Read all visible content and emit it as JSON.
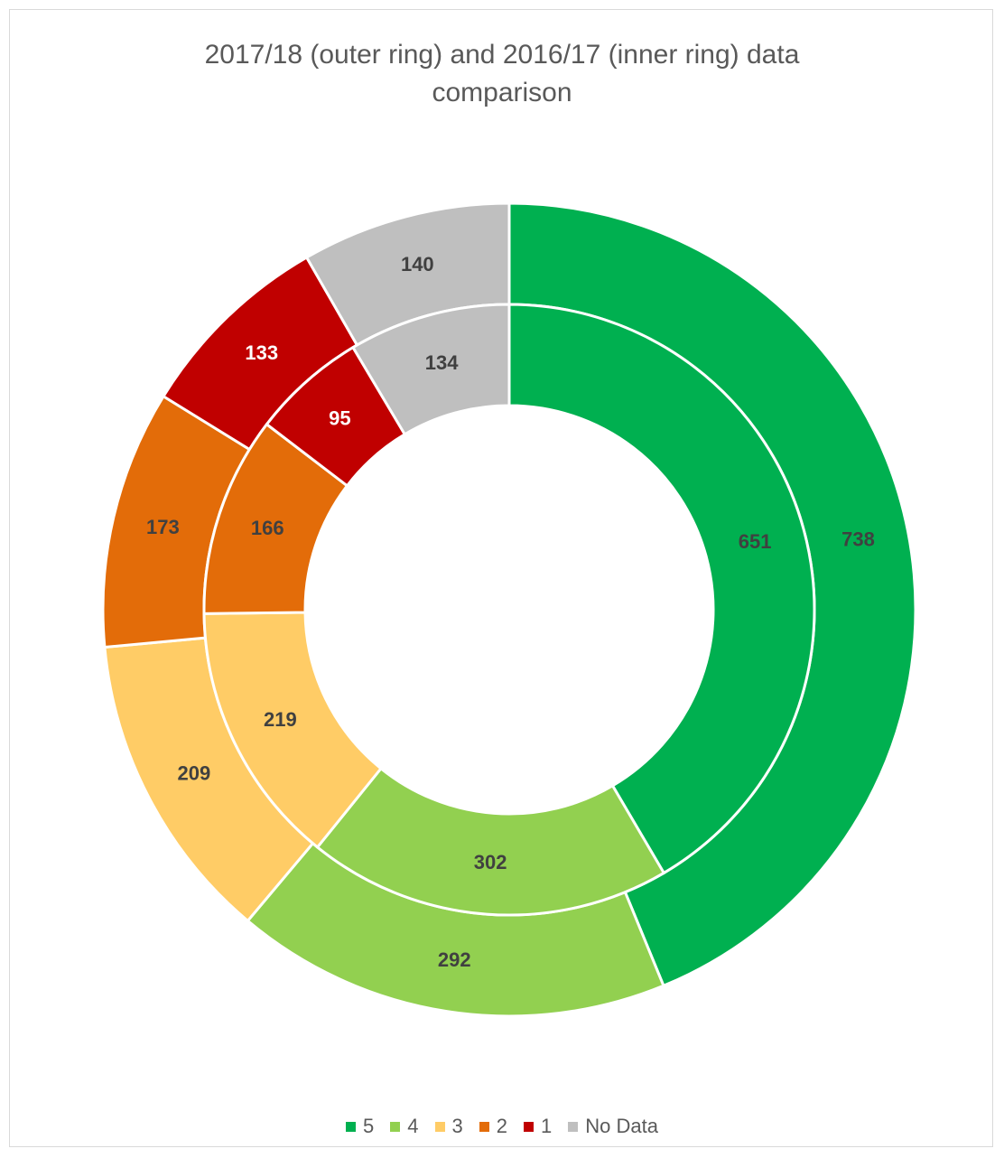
{
  "chart_data": {
    "type": "doughnut",
    "title": "2017/18 (outer ring) and 2016/17 (inner ring) data comparison",
    "categories": [
      "5",
      "4",
      "3",
      "2",
      "1",
      "No Data"
    ],
    "colors": [
      "#00b050",
      "#92d050",
      "#ffcc66",
      "#e36c09",
      "#c00000",
      "#bfbfbf"
    ],
    "series": [
      {
        "values": [
          738,
          292,
          209,
          173,
          133,
          140
        ]
      },
      {
        "values": [
          651,
          302,
          219,
          166,
          95,
          134
        ]
      }
    ],
    "legend": "bottom"
  }
}
